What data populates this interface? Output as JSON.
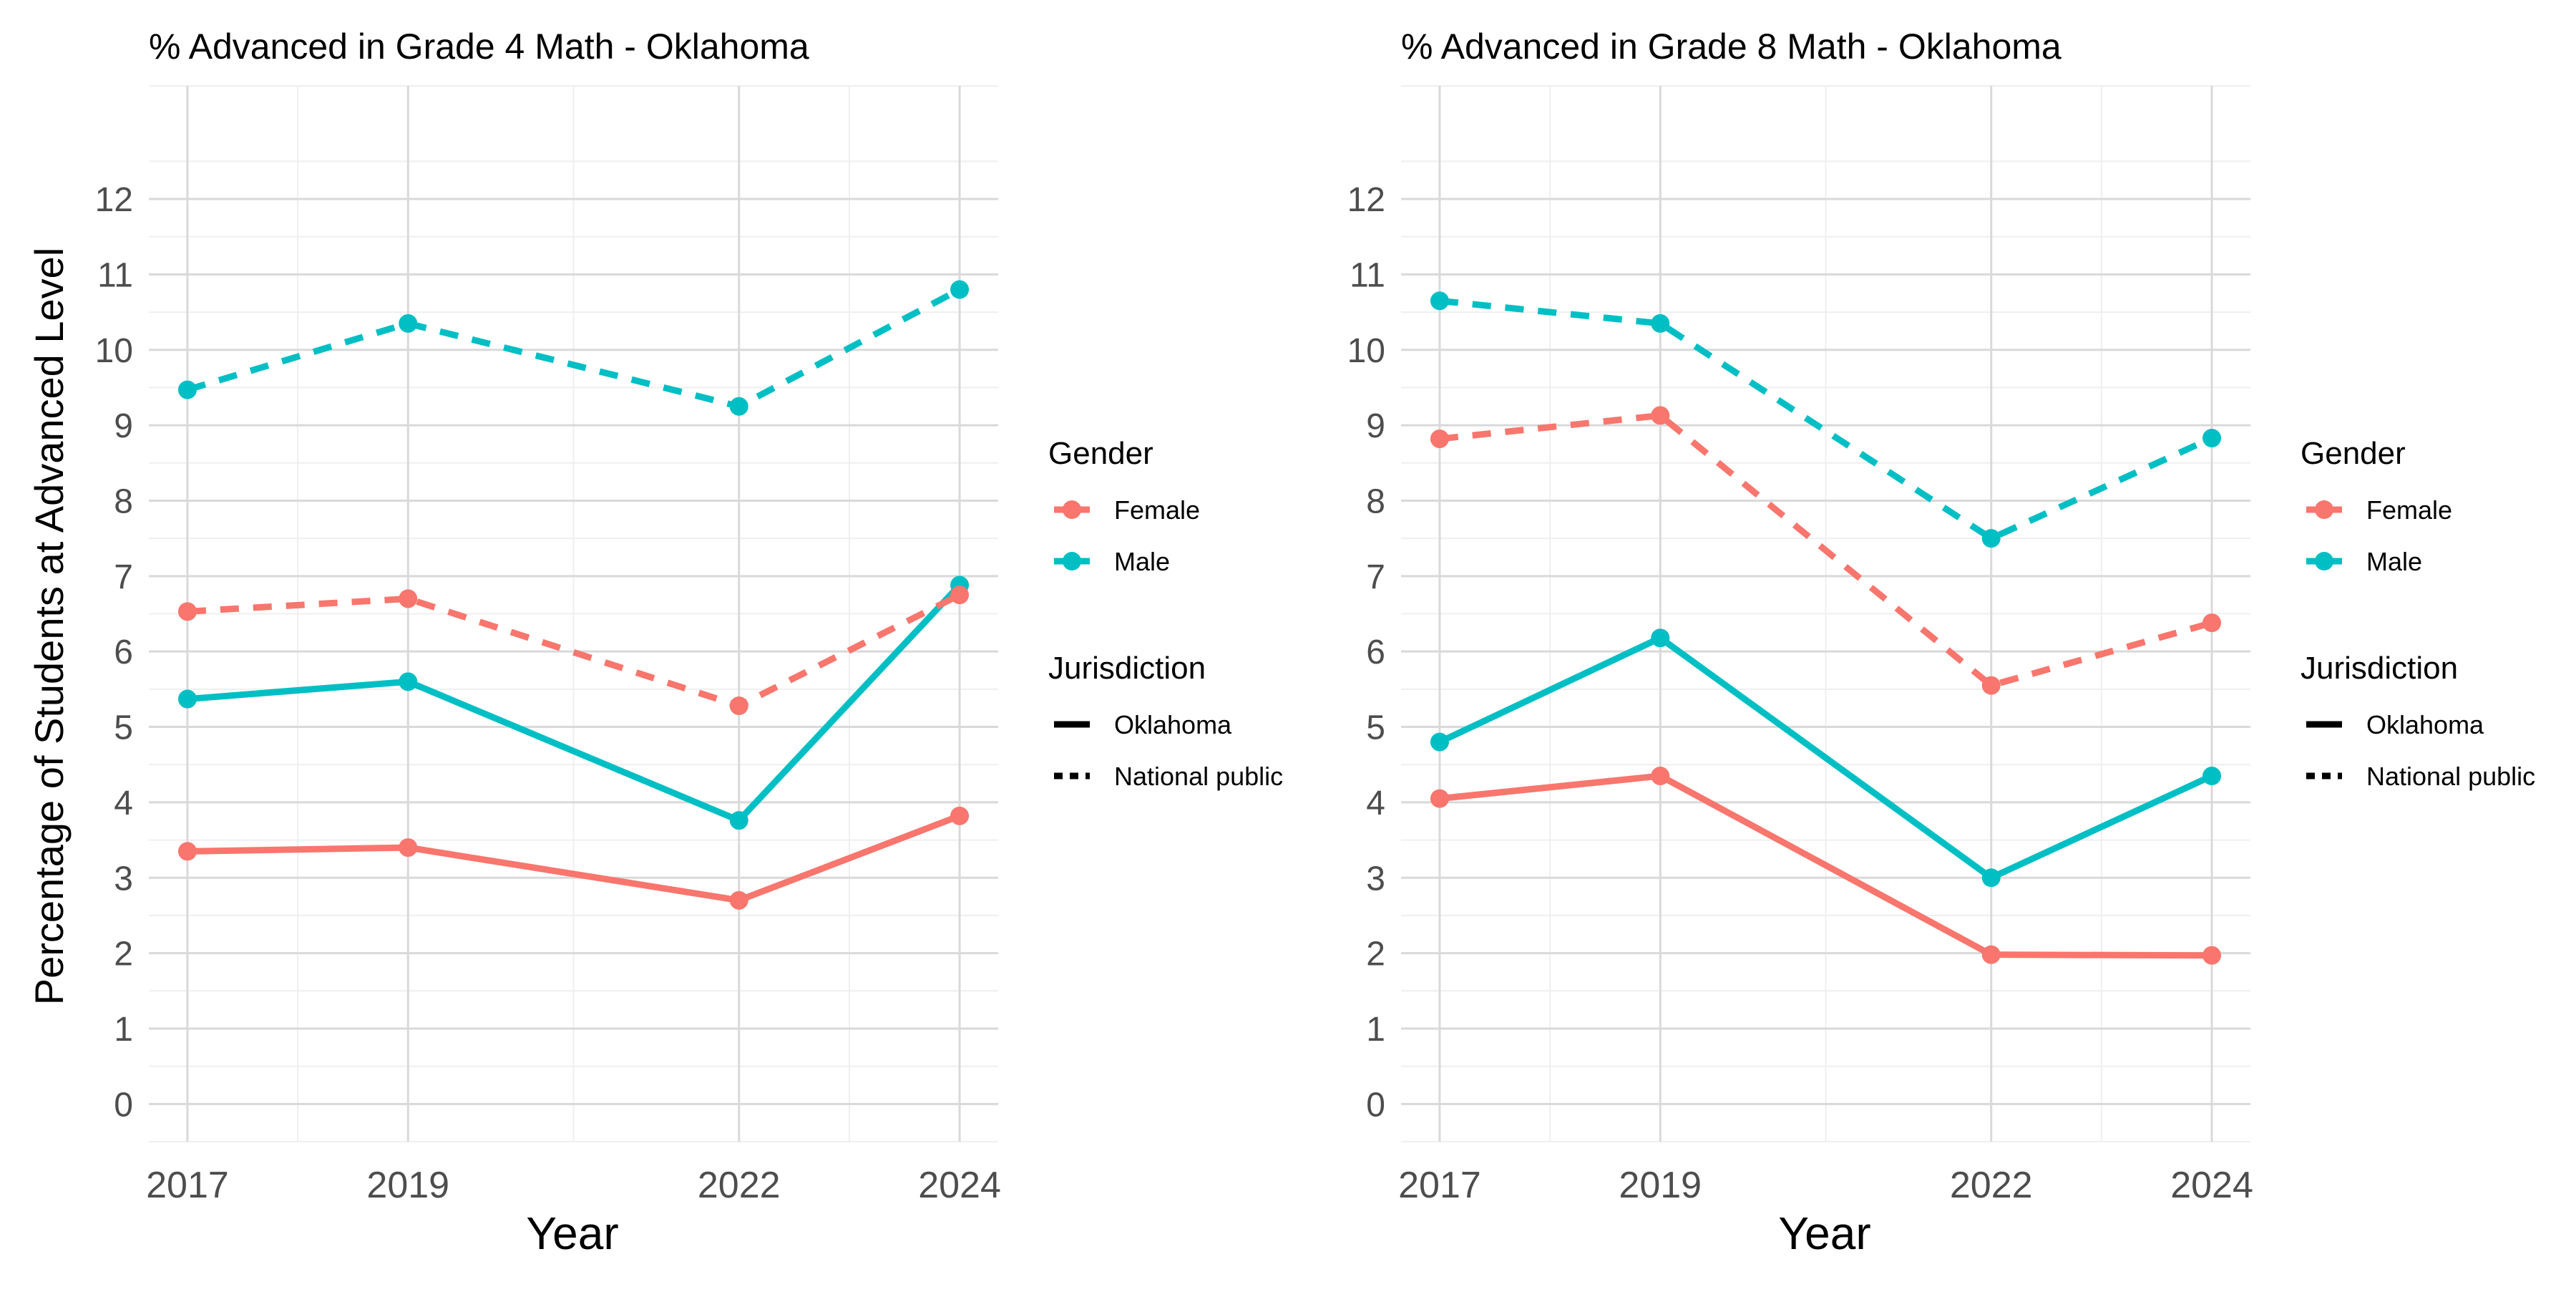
{
  "y_axis_title": "Percentage of Students at Advanced Level",
  "chart_data": [
    {
      "type": "line",
      "title": "% Advanced in Grade 4 Math - Oklahoma",
      "xlabel": "Year",
      "ylabel": "Percentage of Students at Advanced Level",
      "x": [
        2017,
        2019,
        2022,
        2024
      ],
      "x_tick_labels": [
        "2017",
        "2019",
        "2022",
        "2024"
      ],
      "y_ticks": [
        0,
        1,
        2,
        3,
        4,
        5,
        6,
        7,
        8,
        9,
        10,
        11,
        12
      ],
      "ylim": [
        -0.5,
        13.5
      ],
      "xlim": [
        2016.65,
        2024.35
      ],
      "grid": true,
      "series": [
        {
          "name": "Female",
          "gender": "Female",
          "jurisdiction": "Oklahoma",
          "color": "#F8766D",
          "dash": "solid",
          "values": [
            3.35,
            3.4,
            2.7,
            3.82
          ]
        },
        {
          "name": "Male",
          "gender": "Male",
          "jurisdiction": "Oklahoma",
          "color": "#00BFC4",
          "dash": "solid",
          "values": [
            5.37,
            5.6,
            3.76,
            6.88
          ]
        },
        {
          "name": "Female",
          "gender": "Female",
          "jurisdiction": "National public",
          "color": "#F8766D",
          "dash": "dashed",
          "values": [
            6.53,
            6.7,
            5.28,
            6.75
          ]
        },
        {
          "name": "Male",
          "gender": "Male",
          "jurisdiction": "National public",
          "color": "#00BFC4",
          "dash": "dashed",
          "values": [
            9.47,
            10.35,
            9.25,
            10.8
          ]
        }
      ]
    },
    {
      "type": "line",
      "title": "% Advanced in Grade 8 Math - Oklahoma",
      "xlabel": "Year",
      "ylabel": "",
      "x": [
        2017,
        2019,
        2022,
        2024
      ],
      "x_tick_labels": [
        "2017",
        "2019",
        "2022",
        "2024"
      ],
      "y_ticks": [
        0,
        1,
        2,
        3,
        4,
        5,
        6,
        7,
        8,
        9,
        10,
        11,
        12
      ],
      "ylim": [
        -0.5,
        13.5
      ],
      "xlim": [
        2016.65,
        2024.35
      ],
      "grid": true,
      "series": [
        {
          "name": "Female",
          "gender": "Female",
          "jurisdiction": "Oklahoma",
          "color": "#F8766D",
          "dash": "solid",
          "values": [
            4.05,
            4.35,
            1.98,
            1.97
          ]
        },
        {
          "name": "Male",
          "gender": "Male",
          "jurisdiction": "Oklahoma",
          "color": "#00BFC4",
          "dash": "solid",
          "values": [
            4.8,
            6.18,
            3.0,
            4.35
          ]
        },
        {
          "name": "Female",
          "gender": "Female",
          "jurisdiction": "National public",
          "color": "#F8766D",
          "dash": "dashed",
          "values": [
            8.82,
            9.13,
            5.55,
            6.38
          ]
        },
        {
          "name": "Male",
          "gender": "Male",
          "jurisdiction": "National public",
          "color": "#00BFC4",
          "dash": "dashed",
          "values": [
            10.65,
            10.35,
            7.5,
            8.83
          ]
        }
      ]
    }
  ],
  "legend": {
    "gender_title": "Gender",
    "gender_items": [
      {
        "label": "Female",
        "color": "#F8766D"
      },
      {
        "label": "Male",
        "color": "#00BFC4"
      }
    ],
    "jurisdiction_title": "Jurisdiction",
    "jurisdiction_items": [
      {
        "label": "Oklahoma",
        "dash": "solid"
      },
      {
        "label": "National public",
        "dash": "dashed"
      }
    ]
  },
  "colors": {
    "grid_major": "#D9D9D9",
    "grid_minor": "#EFEFEF",
    "tick_text": "#4D4D4D",
    "title_text": "#000000"
  }
}
